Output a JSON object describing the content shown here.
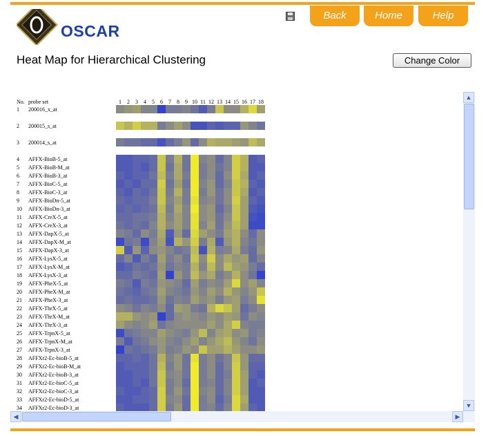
{
  "brand": {
    "name": "OSCAR",
    "logo_letter": "O"
  },
  "nav": {
    "back_label": "Back",
    "home_label": "Home",
    "help_label": "Help"
  },
  "page_title": "Heat Map for Hierarchical Clustering",
  "change_color_label": "Change Color",
  "colors": {
    "accent": "#f3a21a",
    "brand_blue": "#1c3fa8",
    "low": "#2a3bd6",
    "mid": "#8c8c84",
    "high": "#f0ec2c"
  },
  "table": {
    "no_header": "No.",
    "probe_header": "probe set",
    "columns": [
      "1",
      "2",
      "3",
      "4",
      "5",
      "6",
      "7",
      "8",
      "9",
      "10",
      "11",
      "12",
      "13",
      "14",
      "15",
      "16",
      "17",
      "18"
    ],
    "rows": [
      {
        "no": "1",
        "probe": "200016_x_at",
        "values": [
          0.5,
          0.55,
          0.6,
          0.45,
          0.45,
          0.05,
          0.4,
          0.4,
          0.45,
          0.35,
          0.2,
          0.4,
          0.8,
          0.5,
          0.5,
          0.7,
          0.9,
          0.6
        ]
      },
      {
        "no": "2",
        "probe": "200015_s_at",
        "values": [
          0.8,
          0.7,
          0.85,
          0.7,
          0.7,
          0.4,
          0.5,
          0.6,
          0.5,
          0.15,
          0.15,
          0.25,
          0.2,
          0.25,
          0.25,
          0.55,
          0.45,
          0.35
        ]
      },
      {
        "no": "3",
        "probe": "200014_s_at",
        "values": [
          0.4,
          0.35,
          0.35,
          0.3,
          0.3,
          0.15,
          0.3,
          0.4,
          0.55,
          0.3,
          0.5,
          0.7,
          0.65,
          0.65,
          0.6,
          0.55,
          0.75,
          0.65
        ]
      },
      {
        "no": "4",
        "probe": "AFFX-BioB-5_at",
        "values": [
          0.2,
          0.2,
          0.25,
          0.25,
          0.3,
          0.8,
          0.4,
          0.7,
          0.35,
          1,
          0.45,
          0.5,
          0.3,
          0.45,
          0.85,
          0.7,
          0.2,
          0.25
        ]
      },
      {
        "no": "5",
        "probe": "AFFX-BioB-M_at",
        "values": [
          0.2,
          0.2,
          0.25,
          0.2,
          0.3,
          0.8,
          0.35,
          0.65,
          0.35,
          1,
          0.4,
          0.5,
          0.35,
          0.45,
          0.85,
          0.7,
          0.2,
          0.2
        ]
      },
      {
        "no": "6",
        "probe": "AFFX-BioB-3_at",
        "values": [
          0.25,
          0.2,
          0.25,
          0.25,
          0.35,
          0.75,
          0.4,
          0.65,
          0.4,
          1,
          0.4,
          0.5,
          0.3,
          0.5,
          0.85,
          0.65,
          0.2,
          0.25
        ]
      },
      {
        "no": "7",
        "probe": "AFFX-BioC-5_at",
        "values": [
          0.2,
          0.25,
          0.2,
          0.3,
          0.3,
          0.85,
          0.35,
          0.6,
          0.35,
          1,
          0.45,
          0.55,
          0.3,
          0.45,
          0.8,
          0.7,
          0.25,
          0.2
        ]
      },
      {
        "no": "8",
        "probe": "AFFX-BioC-3_at",
        "values": [
          0.25,
          0.2,
          0.3,
          0.25,
          0.35,
          0.8,
          0.4,
          0.7,
          0.4,
          1,
          0.4,
          0.55,
          0.35,
          0.5,
          0.8,
          0.65,
          0.2,
          0.25
        ]
      },
      {
        "no": "9",
        "probe": "AFFX-BioDn-5_at",
        "values": [
          0.3,
          0.25,
          0.3,
          0.3,
          0.4,
          0.8,
          0.45,
          0.6,
          0.4,
          0.95,
          0.45,
          0.5,
          0.35,
          0.5,
          0.85,
          0.6,
          0.25,
          0.2
        ]
      },
      {
        "no": "10",
        "probe": "AFFX-BioDn-3_at",
        "values": [
          0.25,
          0.3,
          0.25,
          0.3,
          0.35,
          0.75,
          0.4,
          0.65,
          0.45,
          1,
          0.5,
          0.55,
          0.3,
          0.45,
          0.8,
          0.6,
          0.2,
          0.15
        ]
      },
      {
        "no": "11",
        "probe": "AFFX-CreX-5_at",
        "values": [
          0.3,
          0.3,
          0.35,
          0.35,
          0.4,
          0.7,
          0.45,
          0.6,
          0.45,
          0.95,
          0.5,
          0.55,
          0.35,
          0.5,
          0.8,
          0.6,
          0.15,
          0.1
        ]
      },
      {
        "no": "12",
        "probe": "AFFX-CreX-3_at",
        "values": [
          0.35,
          0.3,
          0.35,
          0.3,
          0.45,
          0.7,
          0.5,
          0.6,
          0.45,
          0.95,
          0.45,
          0.6,
          0.35,
          0.55,
          0.75,
          0.6,
          0.1,
          0.1
        ]
      },
      {
        "no": "13",
        "probe": "AFFX-DapX-5_at",
        "values": [
          0.45,
          0.4,
          0.3,
          0.5,
          0.4,
          0.65,
          0.2,
          0.55,
          0.3,
          0.9,
          0.6,
          0.5,
          0.4,
          0.6,
          0.7,
          0.5,
          0.3,
          0.5
        ]
      },
      {
        "no": "14",
        "probe": "AFFX-DapX-M_at",
        "values": [
          0.1,
          0.35,
          0.4,
          0.1,
          0.45,
          0.6,
          0.15,
          0.7,
          0.55,
          0.85,
          0.4,
          0.65,
          0.2,
          0.55,
          0.7,
          0.45,
          0.35,
          0.5
        ]
      },
      {
        "no": "15",
        "probe": "AFFX-DapX-3_at",
        "values": [
          0.85,
          0.2,
          0.55,
          0.25,
          0.5,
          0.55,
          0.45,
          0.35,
          0.4,
          0.75,
          0.15,
          0.7,
          0.4,
          0.45,
          0.65,
          0.4,
          0.3,
          0.55
        ]
      },
      {
        "no": "16",
        "probe": "AFFX-LysX-5_at",
        "values": [
          0.3,
          0.45,
          0.2,
          0.4,
          0.3,
          0.6,
          0.4,
          0.5,
          0.35,
          0.8,
          0.5,
          0.85,
          0.5,
          0.65,
          0.55,
          0.6,
          0.3,
          0.45
        ]
      },
      {
        "no": "17",
        "probe": "AFFX-LysX-M_at",
        "values": [
          0.2,
          0.25,
          0.35,
          0.3,
          0.35,
          0.55,
          0.35,
          0.45,
          0.4,
          0.7,
          0.45,
          0.75,
          0.5,
          0.75,
          0.6,
          0.55,
          0.4,
          0.3
        ]
      },
      {
        "no": "18",
        "probe": "AFFX-LysX-3_at",
        "values": [
          0.3,
          0.3,
          0.4,
          0.35,
          0.3,
          0.6,
          0.05,
          0.55,
          0.4,
          0.75,
          0.55,
          0.65,
          0.4,
          0.5,
          0.7,
          0.5,
          0.35,
          0.05
        ]
      },
      {
        "no": "19",
        "probe": "AFFX-PheX-5_at",
        "values": [
          0.4,
          0.35,
          0.2,
          0.4,
          0.35,
          0.55,
          0.5,
          0.45,
          0.3,
          0.6,
          0.4,
          0.5,
          0.45,
          0.6,
          0.9,
          0.5,
          0.6,
          0.45
        ]
      },
      {
        "no": "20",
        "probe": "AFFX-PheX-M_at",
        "values": [
          0.35,
          0.3,
          0.25,
          0.35,
          0.4,
          0.6,
          0.45,
          0.4,
          0.35,
          0.55,
          0.45,
          0.6,
          0.5,
          0.7,
          0.55,
          0.45,
          0.55,
          0.8
        ]
      },
      {
        "no": "21",
        "probe": "AFFX-PheX-3_at",
        "values": [
          0.3,
          0.35,
          0.3,
          0.3,
          0.35,
          0.55,
          0.35,
          0.45,
          0.4,
          0.6,
          0.5,
          0.55,
          0.4,
          0.55,
          0.6,
          0.4,
          0.5,
          0.95
        ]
      },
      {
        "no": "22",
        "probe": "AFFX-ThrX-5_at",
        "values": [
          0.5,
          0.45,
          0.35,
          0.45,
          0.4,
          0.5,
          0.3,
          0.6,
          0.55,
          0.4,
          0.35,
          0.7,
          0.9,
          0.8,
          0.6,
          0.3,
          0.4,
          0.5
        ]
      },
      {
        "no": "23",
        "probe": "AFFX-ThrX-M_at",
        "values": [
          0.7,
          0.7,
          0.55,
          0.5,
          0.55,
          0.05,
          0.3,
          0.5,
          0.55,
          0.5,
          0.45,
          0.55,
          0.5,
          0.6,
          0.55,
          0.35,
          0.5,
          0.45
        ]
      },
      {
        "no": "24",
        "probe": "AFFX-ThrX-3_at",
        "values": [
          0.6,
          0.5,
          0.45,
          0.5,
          0.6,
          0.35,
          0.45,
          0.5,
          0.5,
          0.5,
          0.5,
          0.6,
          0.5,
          0.65,
          0.85,
          0.45,
          0.4,
          0.4
        ]
      },
      {
        "no": "25",
        "probe": "AFFX-TrpnX-5_at",
        "values": [
          0.1,
          0.35,
          0.4,
          0.45,
          0.45,
          0.6,
          0.5,
          0.45,
          0.4,
          0.55,
          0.75,
          0.45,
          0.6,
          0.65,
          0.5,
          0.55,
          0.4,
          0.45
        ]
      },
      {
        "no": "26",
        "probe": "AFFX-TrpnX-M_at",
        "values": [
          0.4,
          0.2,
          0.35,
          0.4,
          0.5,
          0.55,
          0.45,
          0.4,
          0.5,
          0.6,
          0.45,
          0.55,
          0.65,
          0.75,
          0.55,
          0.45,
          0.35,
          0.5
        ]
      },
      {
        "no": "27",
        "probe": "AFFX-TrpnX-3_at",
        "values": [
          0.05,
          0.35,
          0.3,
          0.35,
          0.4,
          0.55,
          0.4,
          0.45,
          0.55,
          0.5,
          0.8,
          0.6,
          0.6,
          0.7,
          0.6,
          0.5,
          0.5,
          0.55
        ]
      },
      {
        "no": "28",
        "probe": "AFFXr2-Ec-bioB-5_at",
        "values": [
          0.25,
          0.25,
          0.3,
          0.25,
          0.35,
          0.7,
          0.45,
          0.55,
          0.35,
          0.95,
          0.4,
          0.5,
          0.35,
          0.45,
          0.8,
          0.55,
          0.3,
          0.3
        ]
      },
      {
        "no": "29",
        "probe": "AFFXr2-Ec-bioB-M_at",
        "values": [
          0.2,
          0.25,
          0.25,
          0.25,
          0.35,
          0.75,
          0.4,
          0.55,
          0.35,
          1,
          0.4,
          0.5,
          0.3,
          0.45,
          0.85,
          0.55,
          0.25,
          0.25
        ]
      },
      {
        "no": "30",
        "probe": "AFFXr2-Ec-bioB-3_at",
        "values": [
          0.2,
          0.2,
          0.25,
          0.25,
          0.35,
          0.8,
          0.45,
          0.5,
          0.35,
          1,
          0.4,
          0.5,
          0.3,
          0.4,
          0.85,
          0.6,
          0.25,
          0.2
        ]
      },
      {
        "no": "31",
        "probe": "AFFXr2-Ec-bioC-5_at",
        "values": [
          0.2,
          0.2,
          0.25,
          0.2,
          0.35,
          0.8,
          0.4,
          0.5,
          0.3,
          1,
          0.4,
          0.45,
          0.3,
          0.45,
          0.85,
          0.6,
          0.2,
          0.25
        ]
      },
      {
        "no": "32",
        "probe": "AFFXr2-Ec-bioC-3_at",
        "values": [
          0.25,
          0.2,
          0.2,
          0.25,
          0.3,
          0.85,
          0.4,
          0.55,
          0.35,
          1,
          0.45,
          0.5,
          0.3,
          0.45,
          0.85,
          0.6,
          0.2,
          0.2
        ]
      },
      {
        "no": "33",
        "probe": "AFFXr2-Ec-bioD-5_at",
        "values": [
          0.2,
          0.2,
          0.25,
          0.25,
          0.3,
          0.85,
          0.45,
          0.5,
          0.3,
          1,
          0.4,
          0.5,
          0.25,
          0.4,
          0.9,
          0.65,
          0.2,
          0.2
        ]
      },
      {
        "no": "34",
        "probe": "AFFXr2-Ec-bioD-3_at",
        "values": [
          0.25,
          0.2,
          0.2,
          0.2,
          0.3,
          0.85,
          0.4,
          0.55,
          0.3,
          1,
          0.4,
          0.45,
          0.3,
          0.45,
          0.9,
          0.6,
          0.25,
          0.2
        ]
      }
    ]
  }
}
